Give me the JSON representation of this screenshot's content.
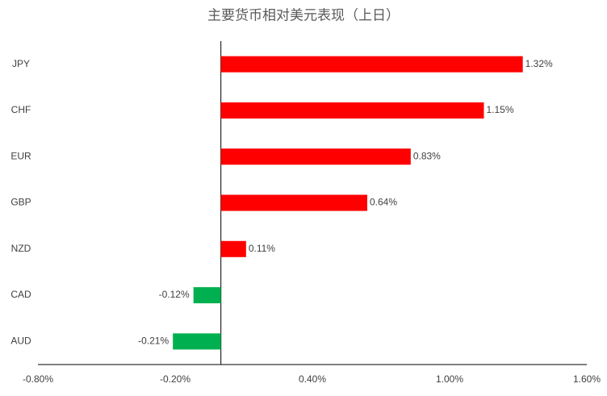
{
  "chart_data": {
    "type": "bar",
    "orientation": "horizontal",
    "title": "主要货币相对美元表现（上日）",
    "categories": [
      "JPY",
      "CHF",
      "EUR",
      "GBP",
      "NZD",
      "CAD",
      "AUD"
    ],
    "values": [
      1.32,
      1.15,
      0.83,
      0.64,
      0.11,
      -0.12,
      -0.21
    ],
    "value_labels": [
      "1.32%",
      "1.15%",
      "0.83%",
      "0.64%",
      "0.11%",
      "-0.12%",
      "-0.21%"
    ],
    "colors": [
      "#ff0000",
      "#ff0000",
      "#ff0000",
      "#ff0000",
      "#ff0000",
      "#00b050",
      "#00b050"
    ],
    "xlim": [
      -0.8,
      1.6
    ],
    "xticks": [
      {
        "value": -0.8,
        "label": "-0.80%"
      },
      {
        "value": -0.2,
        "label": "-0.20%"
      },
      {
        "value": 0.4,
        "label": "0.40%"
      },
      {
        "value": 1.0,
        "label": "1.00%"
      },
      {
        "value": 1.6,
        "label": "1.60%"
      }
    ],
    "grid": false
  }
}
